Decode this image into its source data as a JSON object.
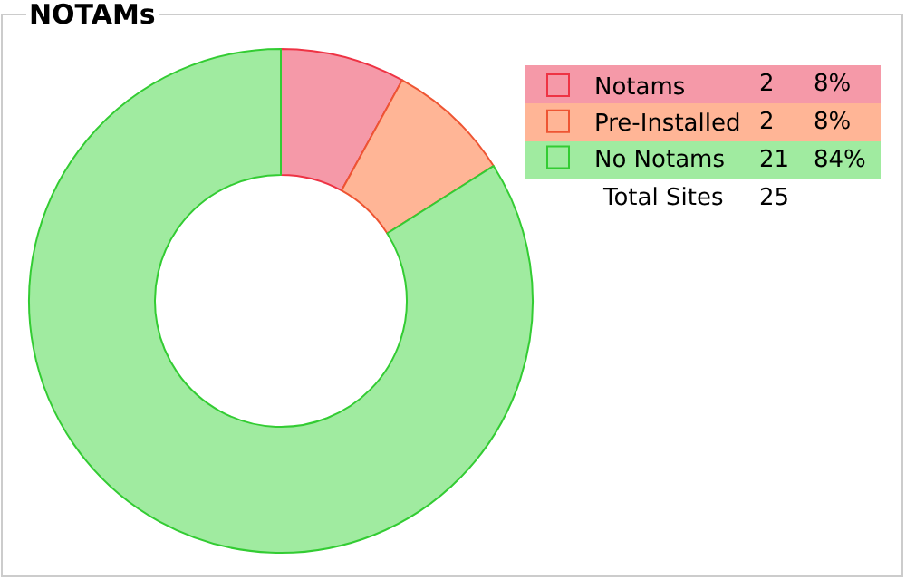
{
  "chart_data": {
    "type": "donut",
    "title": "NOTAMs",
    "categories": [
      "Notams",
      "Pre-Installed",
      "No Notams"
    ],
    "values": [
      2,
      2,
      21
    ],
    "colors": [
      "#f599a8",
      "#ffb596",
      "#a0eba0"
    ],
    "value_labels": [
      "2",
      "2",
      "21"
    ],
    "annotations": [
      "8%",
      "8%",
      "84%",
      "Total Sites",
      "25"
    ],
    "legend": "top right"
  }
}
